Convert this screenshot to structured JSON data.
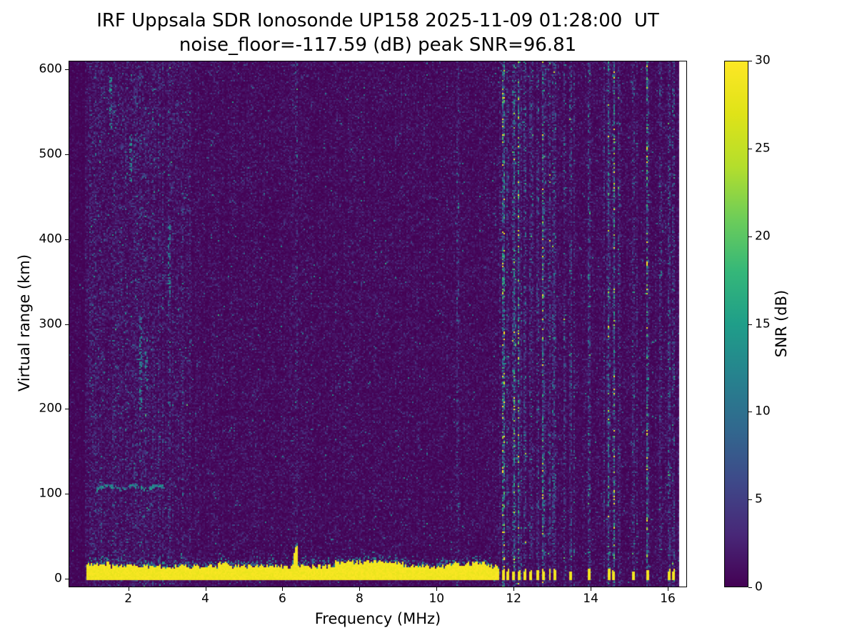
{
  "chart_data": {
    "type": "heatmap",
    "title": "IRF Uppsala SDR Ionosonde UP158 2025-11-09 01:28:00  UT",
    "subtitle": "noise_floor=-117.59 (dB) peak SNR=96.81",
    "xlabel": "Frequency (MHz)",
    "ylabel": "Virtual range (km)",
    "xlim": [
      0.45,
      16.5
    ],
    "ylim": [
      -10,
      610
    ],
    "x_ticks": [
      2,
      4,
      6,
      8,
      10,
      12,
      14,
      16
    ],
    "y_ticks": [
      0,
      100,
      200,
      300,
      400,
      500,
      600
    ],
    "grid": false,
    "data_x_max": 16.33,
    "colorbar": {
      "label": "SNR (dB)",
      "min": 0,
      "max": 30,
      "ticks": [
        0,
        5,
        10,
        15,
        20,
        25,
        30
      ],
      "colormap": "viridis"
    },
    "colormap_stops": [
      [
        0.0,
        68,
        1,
        84
      ],
      [
        0.1,
        72,
        40,
        120
      ],
      [
        0.2,
        62,
        73,
        137
      ],
      [
        0.3,
        49,
        104,
        142
      ],
      [
        0.4,
        38,
        130,
        142
      ],
      [
        0.5,
        31,
        158,
        137
      ],
      [
        0.6,
        53,
        183,
        121
      ],
      [
        0.7,
        109,
        205,
        89
      ],
      [
        0.8,
        180,
        222,
        44
      ],
      [
        0.9,
        223,
        227,
        24
      ],
      [
        1.0,
        253,
        231,
        37
      ]
    ],
    "features": {
      "seed": 20251109,
      "background": {
        "noise_scale": 1.05,
        "column_jitter": 0.5,
        "speck_prob": 0.004,
        "speck_min": 5,
        "speck_span": 8,
        "lowfreq": {
          "range": [
            0.9,
            3.6
          ],
          "scale": 1.6
        },
        "quiet_left_mhz": 0.85,
        "quiet_scale": 0.55
      },
      "rfi_stripes": {
        "above_mhz": 11.6,
        "prob_dense": 0.3,
        "dense_until_mhz": 13.15,
        "prob_sparse": 0.12,
        "factor": 2.4,
        "blob_factor": 2.8
      },
      "faint_stripes": {
        "freqs": [
          6.35,
          10.55
        ],
        "half_width": 0.03,
        "factor": 1.9
      },
      "ground_band": {
        "x_range": [
          0.88,
          11.65
        ],
        "core_bottom_km": -3,
        "core_top_km": 11,
        "top_jitter_km": 6,
        "fringe_km": 10,
        "fringe_min": 5,
        "fringe_span": 10,
        "fringe_prob": 0.45,
        "thick_regions": [
          [
            7.35,
            9.15,
            5
          ],
          [
            4.3,
            4.6,
            4
          ],
          [
            10.3,
            11.35,
            3
          ],
          [
            0.95,
            1.5,
            3
          ]
        ]
      },
      "spike": {
        "mhz": 6.35,
        "half_width": 0.05,
        "top_km": 38
      },
      "blobs": {
        "freqs": [
          11.73,
          11.87,
          12.01,
          12.16,
          12.31,
          12.46,
          12.62,
          12.78,
          12.95,
          13.09,
          13.49,
          13.99,
          14.48,
          14.6,
          15.11,
          15.51,
          16.04,
          16.16
        ],
        "half_width": 0.035,
        "bottom_km": -3,
        "top_km": 7,
        "top_jitter_km": 5
      },
      "e_trace": {
        "x_range": [
          1.15,
          3.0
        ],
        "km": 107,
        "wiggle_km": 4,
        "half_thick_km": 2.2,
        "prob": 0.5,
        "min": 8,
        "span": 8,
        "bright_segments": [
          [
            1.22,
            1.62
          ],
          [
            2.52,
            2.92
          ]
        ],
        "bright_prob": 0.92
      },
      "streaks": {
        "prob": 0.4,
        "min": 7,
        "span": 8,
        "list": [
          [
            1.52,
            528,
            592
          ],
          [
            2.05,
            468,
            525
          ],
          [
            2.3,
            196,
            312
          ],
          [
            2.45,
            222,
            268
          ],
          [
            3.05,
            332,
            418
          ]
        ]
      }
    }
  }
}
